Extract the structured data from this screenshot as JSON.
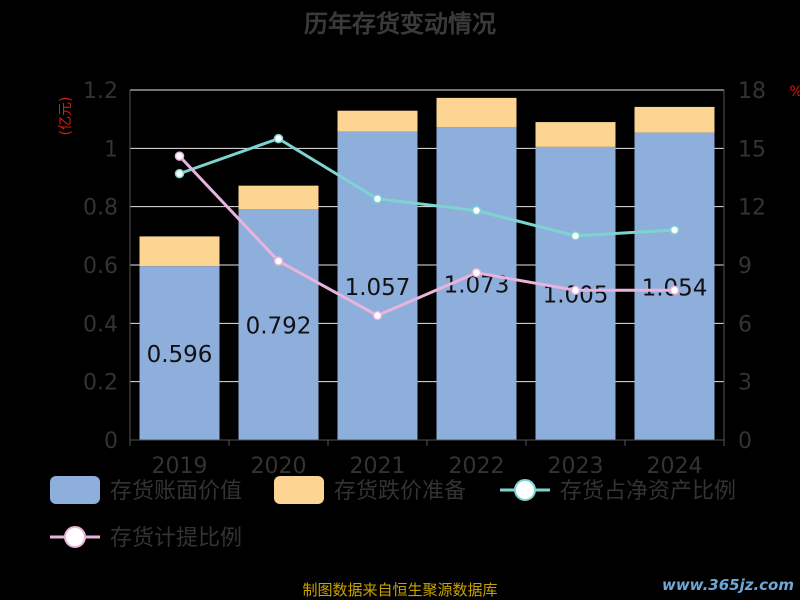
{
  "chart_data": {
    "type": "bar",
    "title": "历年存货变动情况",
    "categories": [
      "2019",
      "2020",
      "2021",
      "2022",
      "2023",
      "2024"
    ],
    "y_left": {
      "label": "(亿元)",
      "ticks": [
        "0",
        "0.2",
        "0.4",
        "0.6",
        "0.8",
        "1",
        "1.2"
      ],
      "range": [
        0,
        1.2
      ]
    },
    "y_right": {
      "label": "%",
      "ticks": [
        "0",
        "3",
        "6",
        "9",
        "12",
        "15",
        "18"
      ],
      "range": [
        0,
        18
      ]
    },
    "stacked": true,
    "series": [
      {
        "name": "存货账面价值",
        "type": "bar",
        "color": "#8eaedc",
        "values": [
          0.596,
          0.792,
          1.057,
          1.073,
          1.005,
          1.054
        ],
        "data_labels": [
          "0.596",
          "0.792",
          "1.057",
          "1.073",
          "1.005",
          "1.054"
        ]
      },
      {
        "name": "存货跌价准备",
        "type": "bar",
        "color": "#fdd592",
        "values": [
          0.102,
          0.08,
          0.072,
          0.1,
          0.085,
          0.088
        ]
      },
      {
        "name": "存货占净资产比例",
        "type": "line",
        "axis": "right",
        "color": "#7dd3d0",
        "values": [
          13.7,
          15.5,
          12.4,
          11.8,
          10.5,
          10.8
        ]
      },
      {
        "name": "存货计提比例",
        "type": "line",
        "axis": "right",
        "color": "#e8b4dc",
        "values": [
          14.6,
          9.2,
          6.4,
          8.6,
          7.7,
          7.7
        ]
      }
    ],
    "legend_position": "bottom",
    "grid": true
  },
  "footer": {
    "source": "制图数据来自恒生聚源数据库",
    "watermark": "www.365jz.com"
  }
}
